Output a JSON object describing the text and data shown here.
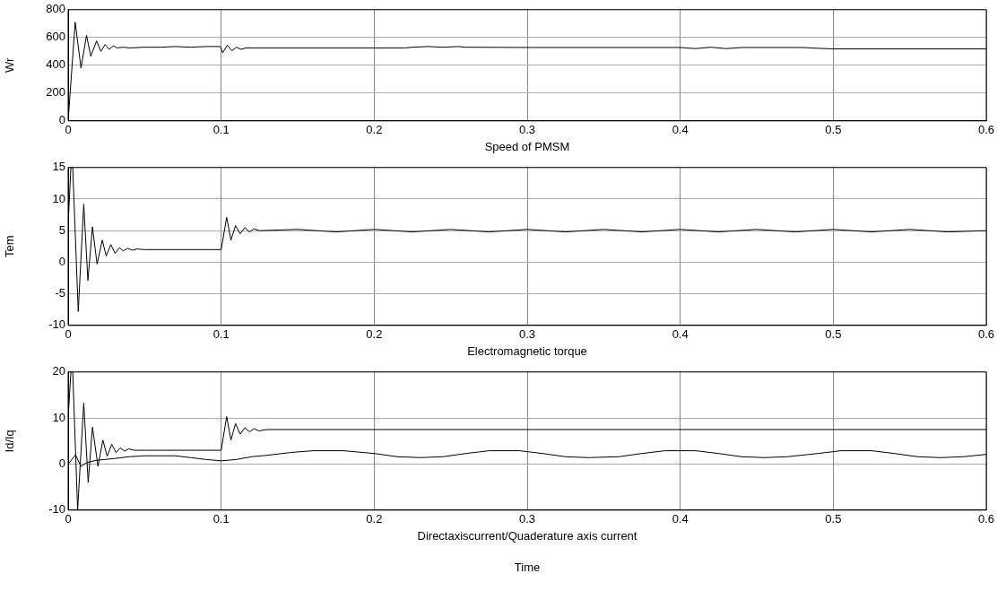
{
  "chart_data": [
    {
      "type": "line",
      "xlabel": "Speed of PMSM",
      "ylabel": "Wr",
      "xlim": [
        0,
        0.6
      ],
      "xticks": [
        0,
        0.1,
        0.2,
        0.3,
        0.4,
        0.5,
        0.6
      ],
      "ylim": [
        0,
        800
      ],
      "yticks": [
        0,
        200,
        400,
        600,
        800
      ],
      "grid": true,
      "legend": false,
      "marker": "none",
      "line_style": "solid",
      "series": [
        {
          "color": "#000000",
          "x": [
            0,
            0.0046,
            0.0084,
            0.012,
            0.0148,
            0.0186,
            0.0214,
            0.0242,
            0.0268,
            0.0296,
            0.032,
            0.036,
            0.04,
            0.05,
            0.06,
            0.07,
            0.08,
            0.09,
            0.0995,
            0.101,
            0.104,
            0.107,
            0.11,
            0.113,
            0.116,
            0.12,
            0.15,
            0.22,
            0.225,
            0.235,
            0.245,
            0.255,
            0.26,
            0.3,
            0.4,
            0.41,
            0.42,
            0.43,
            0.44,
            0.48,
            0.49,
            0.5,
            0.6
          ],
          "values": [
            0,
            710,
            380,
            615,
            465,
            575,
            500,
            550,
            515,
            540,
            525,
            530,
            525,
            530,
            530,
            535,
            530,
            535,
            535,
            490,
            545,
            505,
            530,
            515,
            525,
            525,
            525,
            525,
            530,
            535,
            530,
            535,
            530,
            528,
            528,
            520,
            530,
            520,
            528,
            528,
            522,
            518,
            518
          ]
        }
      ]
    },
    {
      "type": "line",
      "xlabel": "Electromagnetic torque",
      "ylabel": "Tem",
      "xlim": [
        0,
        0.6
      ],
      "xticks": [
        0,
        0.1,
        0.2,
        0.3,
        0.4,
        0.5,
        0.6
      ],
      "ylim": [
        -10,
        15
      ],
      "yticks": [
        -10,
        -5,
        0,
        5,
        10,
        15
      ],
      "grid": true,
      "legend": false,
      "marker": "none",
      "line_style": "solid",
      "series": [
        {
          "color": "#000000",
          "x": [
            0,
            0.0018,
            0.003,
            0.0066,
            0.0102,
            0.0129,
            0.0159,
            0.0189,
            0.0223,
            0.0249,
            0.0279,
            0.0307,
            0.0335,
            0.036,
            0.039,
            0.042,
            0.045,
            0.05,
            0.1,
            0.1036,
            0.1064,
            0.1094,
            0.1124,
            0.1155,
            0.1185,
            0.1215,
            0.125,
            0.15,
            0.175,
            0.2,
            0.225,
            0.25,
            0.275,
            0.3,
            0.325,
            0.35,
            0.375,
            0.4,
            0.425,
            0.45,
            0.475,
            0.5,
            0.525,
            0.55,
            0.575,
            0.6
          ],
          "values": [
            6,
            15,
            15,
            -7.8,
            9.2,
            -2.9,
            5.6,
            -0.3,
            3.5,
            1,
            2.8,
            1.4,
            2.3,
            1.8,
            2.2,
            1.9,
            2.1,
            2,
            2,
            7.1,
            3.5,
            5.8,
            4.5,
            5.5,
            4.8,
            5.3,
            5,
            5.2,
            4.8,
            5.2,
            4.8,
            5.2,
            4.8,
            5.2,
            4.8,
            5.2,
            4.8,
            5.2,
            4.8,
            5.2,
            4.8,
            5.2,
            4.8,
            5.2,
            4.8,
            5
          ]
        }
      ]
    },
    {
      "type": "line",
      "xlabel": "Directaxiscurrent/Quaderature axis current",
      "ylabel": "Id/Iq",
      "annotations": [
        "Time"
      ],
      "xlim": [
        0,
        0.6
      ],
      "xticks": [
        0,
        0.1,
        0.2,
        0.3,
        0.4,
        0.5,
        0.6
      ],
      "ylim": [
        -10,
        20
      ],
      "yticks": [
        -10,
        0,
        10,
        20
      ],
      "grid": true,
      "legend": false,
      "marker": "none",
      "line_style": "solid",
      "series": [
        {
          "color": "#000000",
          "x": [
            0,
            0.0018,
            0.003,
            0.0062,
            0.0102,
            0.0131,
            0.0159,
            0.0195,
            0.0227,
            0.0255,
            0.0285,
            0.0313,
            0.034,
            0.0369,
            0.0396,
            0.043,
            0.05,
            0.1,
            0.1036,
            0.1064,
            0.1094,
            0.1124,
            0.1155,
            0.1185,
            0.1215,
            0.1245,
            0.13,
            0.6
          ],
          "values": [
            10,
            20,
            20,
            -10,
            13.3,
            -4,
            8,
            -0.5,
            5.2,
            1.7,
            4.3,
            2.5,
            3.5,
            2.8,
            3.3,
            3,
            3,
            3,
            10.3,
            5.2,
            8.8,
            6.5,
            7.9,
            7,
            7.7,
            7.2,
            7.5,
            7.5
          ]
        },
        {
          "color": "#000000",
          "x": [
            0,
            0.0048,
            0.0084,
            0.012,
            0.018,
            0.03,
            0.04,
            0.05,
            0.07,
            0.08,
            0.09,
            0.1,
            0.11,
            0.12,
            0.13,
            0.145,
            0.16,
            0.18,
            0.2,
            0.215,
            0.23,
            0.245,
            0.26,
            0.275,
            0.295,
            0.31,
            0.325,
            0.34,
            0.36,
            0.375,
            0.39,
            0.41,
            0.425,
            0.44,
            0.455,
            0.47,
            0.49,
            0.505,
            0.525,
            0.54,
            0.555,
            0.57,
            0.585,
            0.6
          ],
          "values": [
            0,
            2,
            -0.5,
            0.3,
            0.8,
            1.2,
            1.6,
            1.8,
            1.8,
            1.4,
            1,
            0.7,
            1,
            1.6,
            1.9,
            2.5,
            2.9,
            2.9,
            2.3,
            1.6,
            1.4,
            1.6,
            2.3,
            2.9,
            2.9,
            2.3,
            1.6,
            1.4,
            1.6,
            2.3,
            2.9,
            2.9,
            2.3,
            1.6,
            1.4,
            1.6,
            2.3,
            2.9,
            2.9,
            2.3,
            1.6,
            1.4,
            1.6,
            2.1
          ]
        }
      ]
    }
  ]
}
